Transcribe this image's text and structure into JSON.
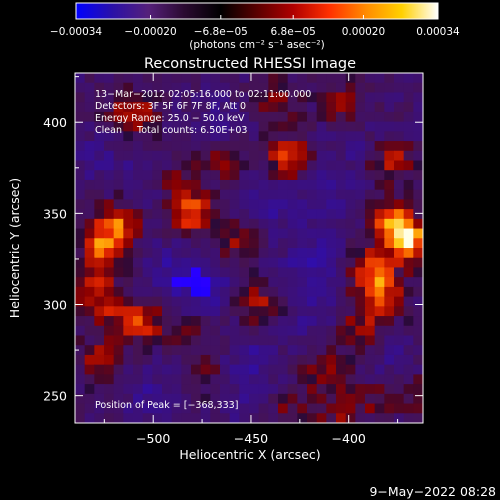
{
  "chart_data": {
    "type": "heatmap",
    "title": "Reconstructed RHESSI Image",
    "xlabel": "Heliocentric X (arcsec)",
    "ylabel": "Heliocentric Y (arcsec)",
    "xlim": [
      -540,
      -362
    ],
    "ylim": [
      235,
      427
    ],
    "x_ticks": [
      -500,
      -450,
      -400
    ],
    "y_ticks": [
      250,
      300,
      350,
      400
    ],
    "x_tick_labels": [
      "−500",
      "−450",
      "−400"
    ],
    "y_tick_labels": [
      "250",
      "300",
      "350",
      "400"
    ],
    "colorbar": {
      "min": -0.00034,
      "max": 0.00034,
      "ticks": [
        -0.00034,
        -0.0002,
        -6.8e-05,
        6.8e-05,
        0.0002,
        0.00034
      ],
      "tick_labels": [
        "−0.00034",
        "−0.00020",
        "−6.8e−05",
        "6.8e−05",
        "0.00020",
        "0.00034"
      ],
      "unit_label": "(photons cm⁻² s⁻¹ asec⁻²)",
      "colors": [
        "#0000ff",
        "#2a10a8",
        "#55207a",
        "#2a0a30",
        "#000000",
        "#5a0000",
        "#b00000",
        "#ff3000",
        "#ff8a00",
        "#ffd000",
        "#ffffff"
      ]
    },
    "annotations": [
      "13−Mar−2012 02:05:16.000 to 02:11:00.000",
      "Detectors: 3F 5F 6F 7F 8F, Att 0",
      "Energy Range: 25.0 − 50.0 keV",
      "Clean     Total counts: 6.50E+03"
    ],
    "peak_label": "Position of Peak = [−368,333]",
    "peak": [
      -368,
      333
    ],
    "hotspots": [
      {
        "x": -368,
        "y": 333,
        "intensity": 1.0
      },
      {
        "x": -377,
        "y": 345,
        "intensity": 0.9
      },
      {
        "x": -388,
        "y": 318,
        "intensity": 0.85
      },
      {
        "x": -383,
        "y": 302,
        "intensity": 0.75
      },
      {
        "x": -378,
        "y": 378,
        "intensity": 0.6
      },
      {
        "x": -402,
        "y": 408,
        "intensity": 0.5
      },
      {
        "x": -363,
        "y": 250,
        "intensity": 0.45
      },
      {
        "x": -431,
        "y": 380,
        "intensity": 0.75
      },
      {
        "x": -438,
        "y": 412,
        "intensity": 0.5
      },
      {
        "x": -446,
        "y": 300,
        "intensity": 0.55
      },
      {
        "x": -457,
        "y": 335,
        "intensity": 0.5
      },
      {
        "x": -480,
        "y": 350,
        "intensity": 0.85
      },
      {
        "x": -490,
        "y": 368,
        "intensity": 0.5
      },
      {
        "x": -465,
        "y": 380,
        "intensity": 0.45
      },
      {
        "x": -525,
        "y": 330,
        "intensity": 0.85
      },
      {
        "x": -519,
        "y": 345,
        "intensity": 0.75
      },
      {
        "x": -510,
        "y": 405,
        "intensity": 0.65
      },
      {
        "x": -530,
        "y": 308,
        "intensity": 0.55
      },
      {
        "x": -505,
        "y": 290,
        "intensity": 0.6
      },
      {
        "x": -520,
        "y": 295,
        "intensity": 0.45
      },
      {
        "x": -482,
        "y": 285,
        "intensity": 0.4
      },
      {
        "x": -527,
        "y": 270,
        "intensity": 0.5
      },
      {
        "x": -473,
        "y": 262,
        "intensity": 0.35
      },
      {
        "x": -412,
        "y": 262,
        "intensity": 0.45
      },
      {
        "x": -395,
        "y": 285,
        "intensity": 0.5
      },
      {
        "x": -430,
        "y": 240,
        "intensity": 0.35
      },
      {
        "x": -405,
        "y": 240,
        "intensity": 0.4
      },
      {
        "x": -386,
        "y": 248,
        "intensity": 0.35
      }
    ],
    "coldspots": [
      {
        "x": -475,
        "y": 310,
        "intensity": 0.8
      },
      {
        "x": -420,
        "y": 325,
        "intensity": 0.7
      },
      {
        "x": -440,
        "y": 355,
        "intensity": 0.6
      },
      {
        "x": -500,
        "y": 370,
        "intensity": 0.5
      },
      {
        "x": -450,
        "y": 270,
        "intensity": 0.55
      },
      {
        "x": -500,
        "y": 250,
        "intensity": 0.5
      },
      {
        "x": -410,
        "y": 360,
        "intensity": 0.5
      },
      {
        "x": -490,
        "y": 320,
        "intensity": 0.55
      },
      {
        "x": -465,
        "y": 400,
        "intensity": 0.4
      },
      {
        "x": -420,
        "y": 295,
        "intensity": 0.45
      },
      {
        "x": -530,
        "y": 380,
        "intensity": 0.4
      },
      {
        "x": -400,
        "y": 390,
        "intensity": 0.35
      },
      {
        "x": -455,
        "y": 245,
        "intensity": 0.4
      },
      {
        "x": -380,
        "y": 270,
        "intensity": 0.35
      }
    ]
  },
  "footer": {
    "timestamp": "9−May−2022 08:28"
  }
}
